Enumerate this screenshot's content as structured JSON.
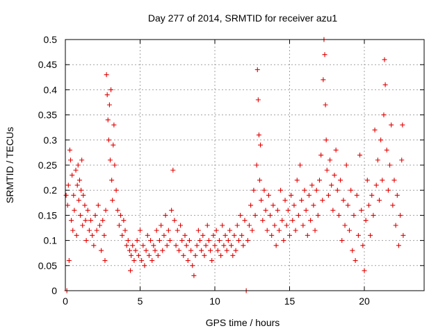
{
  "chart_data": {
    "type": "scatter",
    "title": "Day 277 of 2014, SRMTID for receiver azu1",
    "xlabel": "GPS time / hours",
    "ylabel": "SRMTID / TECUs",
    "xlim": [
      0,
      24
    ],
    "ylim": [
      0,
      0.5
    ],
    "x_ticks": [
      0,
      5,
      10,
      15,
      20
    ],
    "x_tick_labels": [
      "0",
      "5",
      "10",
      "15",
      "20"
    ],
    "y_ticks": [
      0,
      0.05,
      0.1,
      0.15,
      0.2,
      0.25,
      0.3,
      0.35,
      0.4,
      0.45,
      0.5
    ],
    "y_tick_labels": [
      "0",
      "0.05",
      "0.1",
      "0.15",
      "0.2",
      "0.25",
      "0.3",
      "0.35",
      "0.4",
      "0.45",
      "0.5"
    ],
    "grid": true,
    "marker": "+",
    "series": [
      {
        "name": "SRMTID",
        "color": "#e00000",
        "points": [
          [
            0.05,
            0.19
          ],
          [
            0.1,
            0.0
          ],
          [
            0.15,
            0.17
          ],
          [
            0.2,
            0.21
          ],
          [
            0.25,
            0.06
          ],
          [
            0.3,
            0.28
          ],
          [
            0.35,
            0.26
          ],
          [
            0.4,
            0.14
          ],
          [
            0.45,
            0.23
          ],
          [
            0.5,
            0.12
          ],
          [
            0.55,
            0.19
          ],
          [
            0.6,
            0.16
          ],
          [
            0.7,
            0.24
          ],
          [
            0.75,
            0.11
          ],
          [
            0.8,
            0.21
          ],
          [
            0.85,
            0.25
          ],
          [
            0.9,
            0.18
          ],
          [
            0.95,
            0.22
          ],
          [
            1.0,
            0.15
          ],
          [
            1.05,
            0.2
          ],
          [
            1.1,
            0.26
          ],
          [
            1.15,
            0.13
          ],
          [
            1.2,
            0.19
          ],
          [
            1.3,
            0.17
          ],
          [
            1.35,
            0.14
          ],
          [
            1.4,
            0.1
          ],
          [
            1.5,
            0.16
          ],
          [
            1.6,
            0.12
          ],
          [
            1.7,
            0.14
          ],
          [
            1.8,
            0.11
          ],
          [
            1.9,
            0.09
          ],
          [
            2.0,
            0.15
          ],
          [
            2.1,
            0.12
          ],
          [
            2.2,
            0.17
          ],
          [
            2.3,
            0.13
          ],
          [
            2.4,
            0.08
          ],
          [
            2.5,
            0.14
          ],
          [
            2.6,
            0.11
          ],
          [
            2.65,
            0.06
          ],
          [
            2.7,
            0.16
          ],
          [
            2.75,
            0.43
          ],
          [
            2.8,
            0.39
          ],
          [
            2.85,
            0.34
          ],
          [
            2.9,
            0.3
          ],
          [
            2.95,
            0.37
          ],
          [
            3.0,
            0.26
          ],
          [
            3.05,
            0.4
          ],
          [
            3.1,
            0.22
          ],
          [
            3.15,
            0.18
          ],
          [
            3.2,
            0.29
          ],
          [
            3.25,
            0.33
          ],
          [
            3.3,
            0.25
          ],
          [
            3.4,
            0.2
          ],
          [
            3.5,
            0.16
          ],
          [
            3.6,
            0.13
          ],
          [
            3.7,
            0.15
          ],
          [
            3.8,
            0.11
          ],
          [
            3.9,
            0.14
          ],
          [
            4.0,
            0.12
          ],
          [
            4.1,
            0.09
          ],
          [
            4.2,
            0.1
          ],
          [
            4.3,
            0.08
          ],
          [
            4.35,
            0.04
          ],
          [
            4.4,
            0.07
          ],
          [
            4.5,
            0.09
          ],
          [
            4.6,
            0.06
          ],
          [
            4.7,
            0.08
          ],
          [
            4.8,
            0.1
          ],
          [
            4.9,
            0.07
          ],
          [
            5.0,
            0.12
          ],
          [
            5.1,
            0.06
          ],
          [
            5.2,
            0.09
          ],
          [
            5.3,
            0.05
          ],
          [
            5.4,
            0.08
          ],
          [
            5.5,
            0.11
          ],
          [
            5.6,
            0.07
          ],
          [
            5.7,
            0.1
          ],
          [
            5.8,
            0.06
          ],
          [
            5.9,
            0.09
          ],
          [
            6.0,
            0.08
          ],
          [
            6.1,
            0.12
          ],
          [
            6.2,
            0.07
          ],
          [
            6.3,
            0.1
          ],
          [
            6.4,
            0.13
          ],
          [
            6.5,
            0.08
          ],
          [
            6.6,
            0.11
          ],
          [
            6.7,
            0.15
          ],
          [
            6.8,
            0.09
          ],
          [
            6.9,
            0.12
          ],
          [
            7.0,
            0.1
          ],
          [
            7.1,
            0.16
          ],
          [
            7.2,
            0.24
          ],
          [
            7.3,
            0.14
          ],
          [
            7.4,
            0.09
          ],
          [
            7.5,
            0.12
          ],
          [
            7.6,
            0.08
          ],
          [
            7.7,
            0.13
          ],
          [
            7.8,
            0.1
          ],
          [
            7.9,
            0.07
          ],
          [
            8.0,
            0.11
          ],
          [
            8.1,
            0.09
          ],
          [
            8.2,
            0.06
          ],
          [
            8.3,
            0.1
          ],
          [
            8.4,
            0.08
          ],
          [
            8.5,
            0.05
          ],
          [
            8.6,
            0.03
          ],
          [
            8.7,
            0.07
          ],
          [
            8.8,
            0.09
          ],
          [
            8.9,
            0.12
          ],
          [
            9.0,
            0.1
          ],
          [
            9.1,
            0.08
          ],
          [
            9.2,
            0.11
          ],
          [
            9.3,
            0.07
          ],
          [
            9.4,
            0.09
          ],
          [
            9.5,
            0.13
          ],
          [
            9.6,
            0.1
          ],
          [
            9.7,
            0.08
          ],
          [
            9.8,
            0.06
          ],
          [
            9.9,
            0.11
          ],
          [
            10.0,
            0.09
          ],
          [
            10.1,
            0.12
          ],
          [
            10.2,
            0.08
          ],
          [
            10.3,
            0.1
          ],
          [
            10.4,
            0.07
          ],
          [
            10.5,
            0.13
          ],
          [
            10.6,
            0.09
          ],
          [
            10.7,
            0.11
          ],
          [
            10.8,
            0.08
          ],
          [
            10.9,
            0.1
          ],
          [
            11.0,
            0.12
          ],
          [
            11.1,
            0.09
          ],
          [
            11.2,
            0.07
          ],
          [
            11.3,
            0.11
          ],
          [
            11.4,
            0.08
          ],
          [
            11.5,
            0.13
          ],
          [
            11.6,
            0.1
          ],
          [
            11.7,
            0.15
          ],
          [
            11.8,
            0.11
          ],
          [
            11.9,
            0.09
          ],
          [
            12.0,
            0.14
          ],
          [
            12.1,
            0.0
          ],
          [
            12.2,
            0.1
          ],
          [
            12.3,
            0.13
          ],
          [
            12.4,
            0.17
          ],
          [
            12.5,
            0.12
          ],
          [
            12.6,
            0.2
          ],
          [
            12.7,
            0.15
          ],
          [
            12.8,
            0.25
          ],
          [
            12.85,
            0.44
          ],
          [
            12.9,
            0.38
          ],
          [
            12.95,
            0.31
          ],
          [
            13.0,
            0.22
          ],
          [
            13.05,
            0.29
          ],
          [
            13.1,
            0.18
          ],
          [
            13.2,
            0.14
          ],
          [
            13.3,
            0.2
          ],
          [
            13.4,
            0.16
          ],
          [
            13.5,
            0.12
          ],
          [
            13.6,
            0.19
          ],
          [
            13.7,
            0.15
          ],
          [
            13.8,
            0.11
          ],
          [
            13.9,
            0.17
          ],
          [
            14.0,
            0.13
          ],
          [
            14.1,
            0.09
          ],
          [
            14.2,
            0.16
          ],
          [
            14.3,
            0.12
          ],
          [
            14.4,
            0.2
          ],
          [
            14.5,
            0.14
          ],
          [
            14.6,
            0.1
          ],
          [
            14.7,
            0.18
          ],
          [
            14.8,
            0.13
          ],
          [
            14.9,
            0.16
          ],
          [
            15.0,
            0.11
          ],
          [
            15.1,
            0.19
          ],
          [
            15.2,
            0.14
          ],
          [
            15.3,
            0.17
          ],
          [
            15.4,
            0.12
          ],
          [
            15.5,
            0.22
          ],
          [
            15.6,
            0.15
          ],
          [
            15.7,
            0.25
          ],
          [
            15.8,
            0.18
          ],
          [
            15.9,
            0.13
          ],
          [
            16.0,
            0.2
          ],
          [
            16.1,
            0.16
          ],
          [
            16.2,
            0.11
          ],
          [
            16.3,
            0.19
          ],
          [
            16.4,
            0.14
          ],
          [
            16.5,
            0.21
          ],
          [
            16.6,
            0.17
          ],
          [
            16.7,
            0.12
          ],
          [
            16.8,
            0.2
          ],
          [
            16.9,
            0.15
          ],
          [
            17.0,
            0.22
          ],
          [
            17.1,
            0.27
          ],
          [
            17.2,
            0.18
          ],
          [
            17.25,
            0.42
          ],
          [
            17.3,
            0.5
          ],
          [
            17.35,
            0.47
          ],
          [
            17.4,
            0.37
          ],
          [
            17.45,
            0.3
          ],
          [
            17.5,
            0.24
          ],
          [
            17.6,
            0.19
          ],
          [
            17.7,
            0.26
          ],
          [
            17.8,
            0.21
          ],
          [
            17.9,
            0.16
          ],
          [
            18.0,
            0.23
          ],
          [
            18.1,
            0.28
          ],
          [
            18.2,
            0.2
          ],
          [
            18.3,
            0.15
          ],
          [
            18.4,
            0.22
          ],
          [
            18.5,
            0.1
          ],
          [
            18.6,
            0.18
          ],
          [
            18.7,
            0.13
          ],
          [
            18.8,
            0.25
          ],
          [
            18.9,
            0.17
          ],
          [
            19.0,
            0.12
          ],
          [
            19.1,
            0.2
          ],
          [
            19.2,
            0.08
          ],
          [
            19.3,
            0.15
          ],
          [
            19.4,
            0.06
          ],
          [
            19.5,
            0.19
          ],
          [
            19.6,
            0.11
          ],
          [
            19.7,
            0.27
          ],
          [
            19.8,
            0.16
          ],
          [
            19.9,
            0.09
          ],
          [
            20.0,
            0.04
          ],
          [
            20.1,
            0.14
          ],
          [
            20.2,
            0.22
          ],
          [
            20.3,
            0.17
          ],
          [
            20.4,
            0.11
          ],
          [
            20.5,
            0.19
          ],
          [
            20.6,
            0.15
          ],
          [
            20.7,
            0.32
          ],
          [
            20.8,
            0.21
          ],
          [
            20.9,
            0.26
          ],
          [
            21.0,
            0.18
          ],
          [
            21.1,
            0.3
          ],
          [
            21.2,
            0.22
          ],
          [
            21.3,
            0.35
          ],
          [
            21.35,
            0.46
          ],
          [
            21.4,
            0.41
          ],
          [
            21.5,
            0.28
          ],
          [
            21.6,
            0.2
          ],
          [
            21.7,
            0.25
          ],
          [
            21.8,
            0.33
          ],
          [
            21.9,
            0.17
          ],
          [
            22.0,
            0.22
          ],
          [
            22.1,
            0.13
          ],
          [
            22.2,
            0.19
          ],
          [
            22.3,
            0.09
          ],
          [
            22.4,
            0.15
          ],
          [
            22.5,
            0.26
          ],
          [
            22.55,
            0.33
          ],
          [
            22.6,
            0.11
          ]
        ]
      }
    ]
  }
}
